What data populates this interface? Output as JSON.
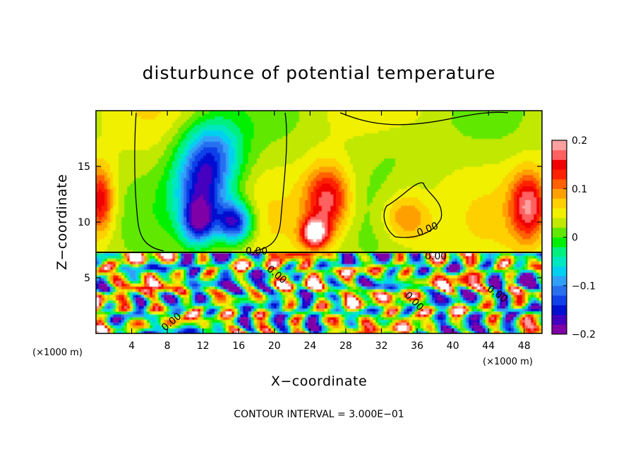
{
  "chart_data": {
    "type": "heatmap",
    "title": "disturbunce of potential temperature",
    "xlabel": "X−coordinate",
    "ylabel": "Z−coordinate",
    "x_unit_label_left": "(×1000 m)",
    "x_unit_label_right": "(×1000 m)",
    "contour_interval_label": "CONTOUR INTERVAL = 3.000E−01",
    "x_range": [
      0,
      50
    ],
    "y_range": [
      0,
      20
    ],
    "x_ticks": [
      4,
      8,
      12,
      16,
      20,
      24,
      28,
      32,
      36,
      40,
      44,
      48
    ],
    "x_tick_labels": [
      "4",
      "8",
      "12",
      "16",
      "20",
      "24",
      "28",
      "32",
      "36",
      "40",
      "44",
      "48"
    ],
    "y_ticks": [
      5,
      10,
      15
    ],
    "y_tick_labels": [
      "5",
      "10",
      "15"
    ],
    "colorbar": {
      "range": [
        -0.2,
        0.2
      ],
      "tick_labels": [
        "0.2",
        "0.1",
        "0",
        "−0.1",
        "−0.2"
      ],
      "tick_values": [
        0.2,
        0.1,
        0,
        -0.1,
        -0.2
      ],
      "colors": [
        "#8000a8",
        "#4400c0",
        "#0010d0",
        "#1040e8",
        "#2870f0",
        "#30a0f8",
        "#00d0f0",
        "#00e8c0",
        "#00f080",
        "#00f000",
        "#60e800",
        "#c0e800",
        "#f0f000",
        "#ffd000",
        "#ffa000",
        "#ff6000",
        "#ff2000",
        "#f00000",
        "#ff6060",
        "#ffa0a0"
      ]
    },
    "contour_labels": [
      "0.00",
      "0.00",
      "0.00",
      "0.00",
      "0.00",
      "0.00",
      "0.00"
    ],
    "interface_height": 7.3,
    "upper_features": [
      {
        "x": 12,
        "z": 13,
        "value": -0.16,
        "sx": 3.2,
        "sz": 3.2
      },
      {
        "x": 15.5,
        "z": 10,
        "value": -0.2,
        "sx": 2,
        "sz": 1.8
      },
      {
        "x": 11.5,
        "z": 10,
        "value": -0.17,
        "sx": 1.8,
        "sz": 2
      },
      {
        "x": 13,
        "z": 16.5,
        "value": -0.12,
        "sx": 3.5,
        "sz": 3
      },
      {
        "x": 26,
        "z": 12,
        "value": 0.14,
        "sx": 2.5,
        "sz": 3
      },
      {
        "x": 24.5,
        "z": 9,
        "value": 0.18,
        "sx": 1.5,
        "sz": 1.3
      },
      {
        "x": 35,
        "z": 10.5,
        "value": 0.09,
        "sx": 3,
        "sz": 2.2
      },
      {
        "x": 37,
        "z": 11,
        "value": -0.02,
        "sx": 2,
        "sz": 1.8
      },
      {
        "x": 48.5,
        "z": 11.5,
        "value": 0.14,
        "sx": 2,
        "sz": 3
      },
      {
        "x": 0.5,
        "z": 12,
        "value": 0.12,
        "sx": 1.5,
        "sz": 3
      },
      {
        "x": 33,
        "z": 17,
        "value": -0.02,
        "sx": 5,
        "sz": 2.5
      }
    ]
  }
}
